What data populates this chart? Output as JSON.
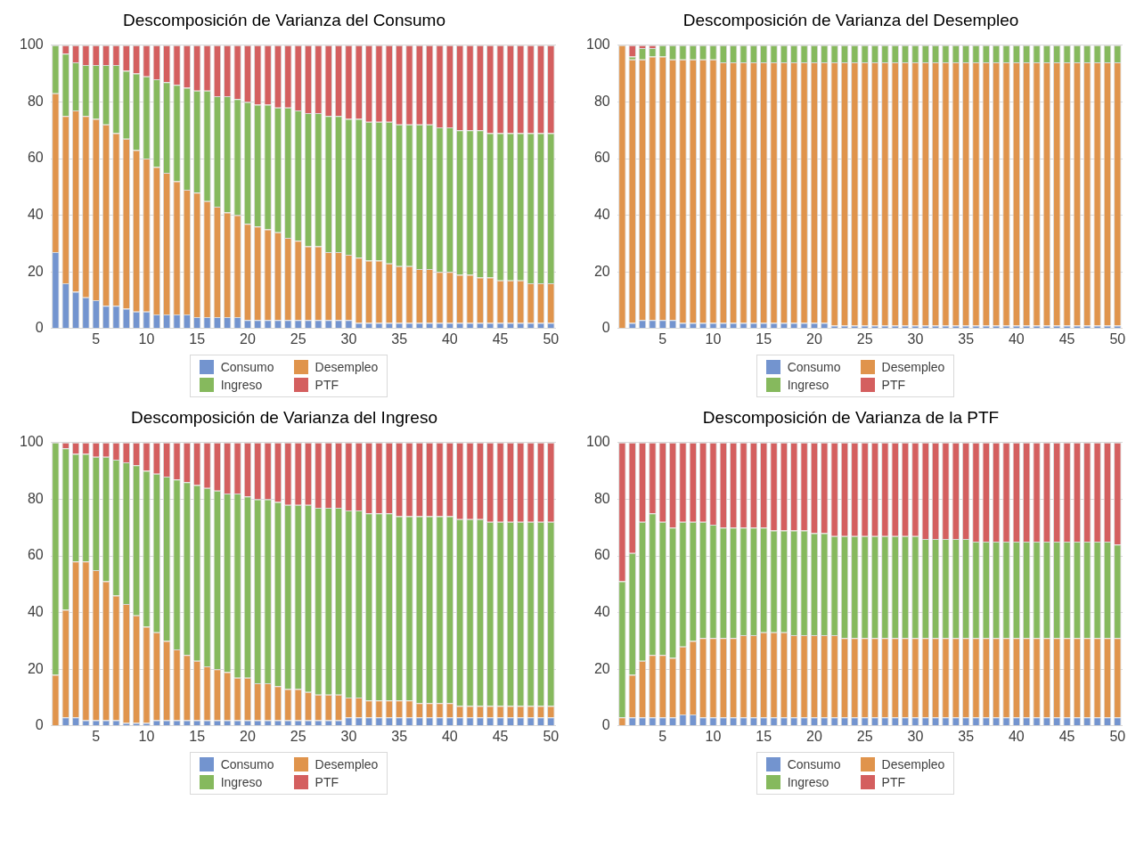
{
  "chart_data": [
    {
      "type": "bar",
      "title": "Descomposición de Varianza del Consumo",
      "stacked": true,
      "ylim": [
        0,
        100
      ],
      "yticks": [
        0,
        20,
        40,
        60,
        80,
        100
      ],
      "grid": "y",
      "legend": "bottom",
      "categories": [
        null,
        null,
        null,
        null,
        "5",
        null,
        null,
        null,
        null,
        "10",
        null,
        null,
        null,
        null,
        "15",
        null,
        null,
        null,
        null,
        "20",
        null,
        null,
        null,
        null,
        "25",
        null,
        null,
        null,
        null,
        "30",
        null,
        null,
        null,
        null,
        "35",
        null,
        null,
        null,
        null,
        "40",
        null,
        null,
        null,
        null,
        "45",
        null,
        null,
        null,
        null,
        "50"
      ],
      "series": [
        {
          "name": "Consumo",
          "color": "#7394cf",
          "values": [
            27,
            16,
            13,
            11,
            10,
            8,
            8,
            7,
            6,
            6,
            5,
            5,
            5,
            5,
            4,
            4,
            4,
            4,
            4,
            3,
            3,
            3,
            3,
            3,
            3,
            3,
            3,
            3,
            3,
            3,
            2,
            2,
            2,
            2,
            2,
            2,
            2,
            2,
            2,
            2,
            2,
            2,
            2,
            2,
            2,
            2,
            2,
            2,
            2,
            2
          ]
        },
        {
          "name": "Desempleo",
          "color": "#e0944c",
          "values": [
            56,
            59,
            64,
            64,
            64,
            64,
            61,
            60,
            57,
            54,
            52,
            50,
            47,
            44,
            44,
            41,
            39,
            37,
            36,
            34,
            33,
            32,
            31,
            29,
            28,
            26,
            26,
            24,
            24,
            23,
            23,
            22,
            22,
            21,
            20,
            20,
            19,
            19,
            18,
            18,
            17,
            17,
            16,
            16,
            15,
            15,
            15,
            14,
            14,
            14
          ]
        },
        {
          "name": "Ingreso",
          "color": "#86b95d",
          "values": [
            17,
            22,
            17,
            18,
            19,
            21,
            24,
            24,
            27,
            29,
            31,
            32,
            34,
            36,
            36,
            39,
            39,
            41,
            41,
            43,
            43,
            44,
            44,
            46,
            46,
            47,
            47,
            48,
            48,
            48,
            49,
            49,
            49,
            50,
            50,
            50,
            51,
            51,
            51,
            51,
            51,
            51,
            52,
            51,
            52,
            52,
            52,
            53,
            53,
            53
          ]
        },
        {
          "name": "PTF",
          "color": "#d45f5f",
          "values": [
            0,
            3,
            6,
            7,
            7,
            7,
            7,
            9,
            10,
            11,
            12,
            13,
            14,
            15,
            16,
            16,
            18,
            18,
            19,
            20,
            21,
            21,
            22,
            22,
            23,
            24,
            24,
            25,
            25,
            26,
            26,
            27,
            27,
            27,
            28,
            28,
            28,
            28,
            29,
            29,
            30,
            30,
            30,
            31,
            31,
            31,
            31,
            31,
            31,
            31
          ]
        }
      ]
    },
    {
      "type": "bar",
      "title": "Descomposición de Varianza del Desempleo",
      "stacked": true,
      "ylim": [
        0,
        100
      ],
      "yticks": [
        0,
        20,
        40,
        60,
        80,
        100
      ],
      "grid": "y",
      "legend": "bottom",
      "categories": [
        null,
        null,
        null,
        null,
        "5",
        null,
        null,
        null,
        null,
        "10",
        null,
        null,
        null,
        null,
        "15",
        null,
        null,
        null,
        null,
        "20",
        null,
        null,
        null,
        null,
        "25",
        null,
        null,
        null,
        null,
        "30",
        null,
        null,
        null,
        null,
        "35",
        null,
        null,
        null,
        null,
        "40",
        null,
        null,
        null,
        null,
        "45",
        null,
        null,
        null,
        null,
        "50"
      ],
      "series": [
        {
          "name": "Consumo",
          "color": "#7394cf",
          "values": [
            0,
            2,
            3,
            3,
            3,
            3,
            2,
            2,
            2,
            2,
            2,
            2,
            2,
            2,
            2,
            2,
            2,
            2,
            2,
            2,
            2,
            1,
            1,
            1,
            1,
            1,
            1,
            1,
            1,
            1,
            1,
            1,
            1,
            1,
            1,
            1,
            1,
            1,
            1,
            1,
            1,
            1,
            1,
            1,
            1,
            1,
            1,
            1,
            1,
            1
          ]
        },
        {
          "name": "Desempleo",
          "color": "#e0944c",
          "values": [
            100,
            93,
            92,
            93,
            93,
            92,
            93,
            93,
            93,
            93,
            92,
            92,
            92,
            92,
            92,
            92,
            92,
            92,
            92,
            92,
            92,
            93,
            93,
            93,
            93,
            93,
            93,
            93,
            93,
            93,
            93,
            93,
            93,
            93,
            93,
            93,
            93,
            93,
            93,
            93,
            93,
            93,
            93,
            93,
            93,
            93,
            93,
            93,
            93,
            93
          ]
        },
        {
          "name": "Ingreso",
          "color": "#86b95d",
          "values": [
            0,
            1,
            4,
            3,
            4,
            5,
            5,
            5,
            5,
            5,
            6,
            6,
            6,
            6,
            6,
            6,
            6,
            6,
            6,
            6,
            6,
            6,
            6,
            6,
            6,
            6,
            6,
            6,
            6,
            6,
            6,
            6,
            6,
            6,
            6,
            6,
            6,
            6,
            6,
            6,
            6,
            6,
            6,
            6,
            6,
            6,
            6,
            6,
            6,
            6
          ]
        },
        {
          "name": "PTF",
          "color": "#d45f5f",
          "values": [
            0,
            4,
            1,
            1,
            0,
            0,
            0,
            0,
            0,
            0,
            0,
            0,
            0,
            0,
            0,
            0,
            0,
            0,
            0,
            0,
            0,
            0,
            0,
            0,
            0,
            0,
            0,
            0,
            0,
            0,
            0,
            0,
            0,
            0,
            0,
            0,
            0,
            0,
            0,
            0,
            0,
            0,
            0,
            0,
            0,
            0,
            0,
            0,
            0,
            0
          ]
        }
      ]
    },
    {
      "type": "bar",
      "title": "Descomposición de Varianza del Ingreso",
      "stacked": true,
      "ylim": [
        0,
        100
      ],
      "yticks": [
        0,
        20,
        40,
        60,
        80,
        100
      ],
      "grid": "y",
      "legend": "bottom",
      "categories": [
        null,
        null,
        null,
        null,
        "5",
        null,
        null,
        null,
        null,
        "10",
        null,
        null,
        null,
        null,
        "15",
        null,
        null,
        null,
        null,
        "20",
        null,
        null,
        null,
        null,
        "25",
        null,
        null,
        null,
        null,
        "30",
        null,
        null,
        null,
        null,
        "35",
        null,
        null,
        null,
        null,
        "40",
        null,
        null,
        null,
        null,
        "45",
        null,
        null,
        null,
        null,
        "50"
      ],
      "series": [
        {
          "name": "Consumo",
          "color": "#7394cf",
          "values": [
            0,
            3,
            3,
            2,
            2,
            2,
            2,
            1,
            1,
            1,
            2,
            2,
            2,
            2,
            2,
            2,
            2,
            2,
            2,
            2,
            2,
            2,
            2,
            2,
            2,
            2,
            2,
            2,
            2,
            3,
            3,
            3,
            3,
            3,
            3,
            3,
            3,
            3,
            3,
            3,
            3,
            3,
            3,
            3,
            3,
            3,
            3,
            3,
            3,
            3
          ]
        },
        {
          "name": "Desempleo",
          "color": "#e0944c",
          "values": [
            18,
            38,
            55,
            56,
            53,
            49,
            44,
            42,
            38,
            34,
            31,
            28,
            25,
            23,
            21,
            19,
            18,
            17,
            15,
            15,
            13,
            13,
            12,
            11,
            11,
            10,
            9,
            9,
            9,
            7,
            7,
            6,
            6,
            6,
            6,
            6,
            5,
            5,
            5,
            5,
            4,
            4,
            4,
            4,
            4,
            4,
            4,
            4,
            4,
            4
          ]
        },
        {
          "name": "Ingreso",
          "color": "#86b95d",
          "values": [
            82,
            57,
            38,
            38,
            40,
            44,
            48,
            50,
            53,
            55,
            56,
            58,
            60,
            61,
            62,
            63,
            63,
            63,
            65,
            64,
            65,
            65,
            65,
            65,
            65,
            66,
            66,
            66,
            66,
            66,
            66,
            66,
            66,
            66,
            65,
            65,
            66,
            66,
            66,
            66,
            66,
            66,
            66,
            65,
            65,
            65,
            65,
            65,
            65,
            65
          ]
        },
        {
          "name": "PTF",
          "color": "#d45f5f",
          "values": [
            0,
            2,
            4,
            4,
            5,
            5,
            6,
            7,
            8,
            10,
            11,
            12,
            13,
            14,
            15,
            16,
            17,
            18,
            18,
            19,
            20,
            20,
            21,
            22,
            22,
            22,
            23,
            23,
            23,
            24,
            24,
            25,
            25,
            25,
            26,
            26,
            26,
            26,
            26,
            26,
            27,
            27,
            27,
            28,
            28,
            28,
            28,
            28,
            28,
            28
          ]
        }
      ]
    },
    {
      "type": "bar",
      "title": "Descomposición de Varianza de la PTF",
      "stacked": true,
      "ylim": [
        0,
        100
      ],
      "yticks": [
        0,
        20,
        40,
        60,
        80,
        100
      ],
      "grid": "y",
      "legend": "bottom",
      "categories": [
        null,
        null,
        null,
        null,
        "5",
        null,
        null,
        null,
        null,
        "10",
        null,
        null,
        null,
        null,
        "15",
        null,
        null,
        null,
        null,
        "20",
        null,
        null,
        null,
        null,
        "25",
        null,
        null,
        null,
        null,
        "30",
        null,
        null,
        null,
        null,
        "35",
        null,
        null,
        null,
        null,
        "40",
        null,
        null,
        null,
        null,
        "45",
        null,
        null,
        null,
        null,
        "50"
      ],
      "series": [
        {
          "name": "Consumo",
          "color": "#7394cf",
          "values": [
            0,
            3,
            3,
            3,
            3,
            3,
            4,
            4,
            3,
            3,
            3,
            3,
            3,
            3,
            3,
            3,
            3,
            3,
            3,
            3,
            3,
            3,
            3,
            3,
            3,
            3,
            3,
            3,
            3,
            3,
            3,
            3,
            3,
            3,
            3,
            3,
            3,
            3,
            3,
            3,
            3,
            3,
            3,
            3,
            3,
            3,
            3,
            3,
            3,
            3
          ]
        },
        {
          "name": "Desempleo",
          "color": "#e0944c",
          "values": [
            3,
            15,
            20,
            22,
            22,
            21,
            24,
            26,
            28,
            28,
            28,
            28,
            29,
            29,
            30,
            30,
            30,
            29,
            29,
            29,
            29,
            29,
            28,
            28,
            28,
            28,
            28,
            28,
            28,
            28,
            28,
            28,
            28,
            28,
            28,
            28,
            28,
            28,
            28,
            28,
            28,
            28,
            28,
            28,
            28,
            28,
            28,
            28,
            28,
            28
          ]
        },
        {
          "name": "Ingreso",
          "color": "#86b95d",
          "values": [
            48,
            43,
            49,
            50,
            47,
            46,
            44,
            42,
            41,
            40,
            39,
            39,
            38,
            38,
            37,
            36,
            36,
            37,
            37,
            36,
            36,
            35,
            36,
            36,
            36,
            36,
            36,
            36,
            36,
            36,
            35,
            35,
            35,
            35,
            35,
            34,
            34,
            34,
            34,
            34,
            34,
            34,
            34,
            34,
            34,
            34,
            34,
            34,
            34,
            33
          ]
        },
        {
          "name": "PTF",
          "color": "#d45f5f",
          "values": [
            49,
            39,
            28,
            25,
            28,
            30,
            28,
            28,
            28,
            29,
            30,
            30,
            30,
            30,
            30,
            31,
            31,
            31,
            31,
            32,
            32,
            33,
            33,
            33,
            33,
            33,
            33,
            33,
            33,
            33,
            34,
            34,
            34,
            34,
            34,
            35,
            35,
            35,
            35,
            35,
            35,
            35,
            35,
            35,
            35,
            35,
            35,
            35,
            35,
            36
          ]
        }
      ]
    }
  ]
}
